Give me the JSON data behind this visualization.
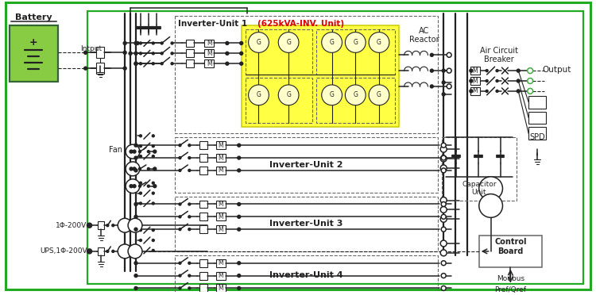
{
  "bg_color": "#ffffff",
  "green": "#22aa22",
  "dark": "#222222",
  "gray": "#666666",
  "red": "#dd0000",
  "yellow": "#ffff44",
  "battery_green": "#88cc44",
  "battery_dark_green": "#336633",
  "label_battery": "Battery",
  "label_intput": "Intput",
  "label_fan": "Fan",
  "label_inv1": "Inverter-Unit 1 ",
  "label_inv1_red": "(625kVA-INV. Unit)",
  "label_inv2": "Inverter-Unit 2",
  "label_inv3": "Inverter-Unit 3",
  "label_inv4": "Inverter-Unit 4",
  "label_ac_reactor": "AC\nReactor",
  "label_air_cb": "Air Circuit\nBreaker",
  "label_output": "Output",
  "label_cap": "Capacitor\nUnit",
  "label_spd": "SPD",
  "label_ctrl": "Control\nBoard",
  "label_modbus": "Modbus",
  "label_pref": "Pref/Qref",
  "label_1phi": "1Φ-200V",
  "label_ups": "UPS,1Φ-200V"
}
